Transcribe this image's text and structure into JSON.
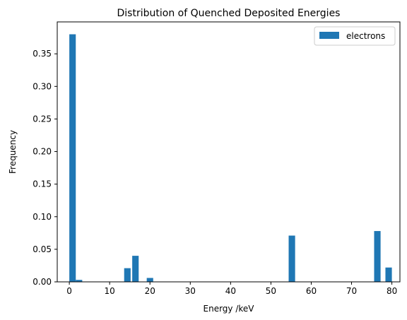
{
  "chart_data": {
    "type": "bar",
    "title": "Distribution of Quenched Deposited Energies",
    "xlabel": "Energy /keV",
    "ylabel": "Frequency",
    "xlim": [
      -3.0,
      82.0
    ],
    "ylim": [
      0,
      0.399
    ],
    "xticks": [
      0,
      10,
      20,
      30,
      40,
      50,
      60,
      70,
      80
    ],
    "yticks": [
      0.0,
      0.05,
      0.1,
      0.15,
      0.2,
      0.25,
      0.3,
      0.35
    ],
    "xtick_labels": [
      "0",
      "10",
      "20",
      "30",
      "40",
      "50",
      "60",
      "70",
      "80"
    ],
    "ytick_labels": [
      "0.00",
      "0.05",
      "0.10",
      "0.15",
      "0.20",
      "0.25",
      "0.30",
      "0.35"
    ],
    "grid": false,
    "legend_position": "top-right",
    "bin_width": 1.6,
    "series": [
      {
        "name": "electrons",
        "color": "#1f77b4",
        "bin_starts": [
          0.0,
          1.6,
          13.6,
          15.6,
          19.2,
          54.4,
          75.6,
          78.4
        ],
        "values": [
          0.38,
          0.003,
          0.021,
          0.04,
          0.006,
          0.071,
          0.078,
          0.022
        ]
      }
    ]
  }
}
